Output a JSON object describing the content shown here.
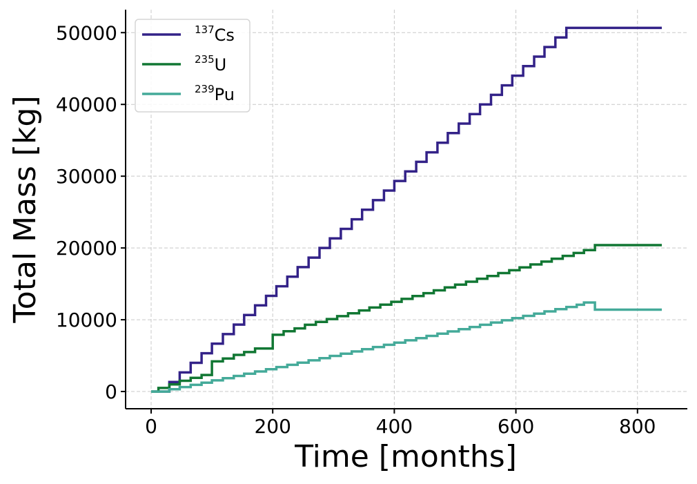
{
  "chart_data": {
    "type": "line",
    "title": "",
    "xlabel": "Time [months]",
    "ylabel": "Total Mass [kg]",
    "xlim": [
      -42,
      882
    ],
    "ylim": [
      -2400,
      53200
    ],
    "xticks": [
      0,
      200,
      400,
      600,
      800
    ],
    "yticks": [
      0,
      10000,
      20000,
      30000,
      40000,
      50000
    ],
    "grid": true,
    "legend_position": "top-left",
    "series": [
      {
        "name": "137Cs",
        "isotope_mass": "137",
        "symbol": "Cs",
        "color": "#332288",
        "step": true,
        "points": [
          [
            0,
            0
          ],
          [
            30,
            1330
          ],
          [
            47,
            2660
          ],
          [
            65,
            4000
          ],
          [
            83,
            5330
          ],
          [
            100,
            6660
          ],
          [
            118,
            8000
          ],
          [
            136,
            9330
          ],
          [
            153,
            10660
          ],
          [
            171,
            12000
          ],
          [
            189,
            13330
          ],
          [
            206,
            14660
          ],
          [
            224,
            16000
          ],
          [
            241,
            17330
          ],
          [
            259,
            18660
          ],
          [
            277,
            20000
          ],
          [
            294,
            21330
          ],
          [
            312,
            22660
          ],
          [
            330,
            24000
          ],
          [
            347,
            25330
          ],
          [
            365,
            26660
          ],
          [
            383,
            28000
          ],
          [
            400,
            29330
          ],
          [
            418,
            30660
          ],
          [
            436,
            32000
          ],
          [
            453,
            33330
          ],
          [
            471,
            34660
          ],
          [
            488,
            36000
          ],
          [
            506,
            37330
          ],
          [
            524,
            38660
          ],
          [
            541,
            40000
          ],
          [
            559,
            41330
          ],
          [
            577,
            42660
          ],
          [
            594,
            44000
          ],
          [
            612,
            45330
          ],
          [
            630,
            46660
          ],
          [
            647,
            48000
          ],
          [
            665,
            49330
          ],
          [
            683,
            50660
          ],
          [
            840,
            50660
          ]
        ]
      },
      {
        "name": "235U",
        "isotope_mass": "235",
        "symbol": "U",
        "color": "#117733",
        "step": true,
        "points": [
          [
            0,
            0
          ],
          [
            12,
            500
          ],
          [
            30,
            1000
          ],
          [
            47,
            1500
          ],
          [
            65,
            1900
          ],
          [
            83,
            2300
          ],
          [
            100,
            4200
          ],
          [
            118,
            4600
          ],
          [
            136,
            5100
          ],
          [
            153,
            5500
          ],
          [
            171,
            6000
          ],
          [
            200,
            7900
          ],
          [
            218,
            8400
          ],
          [
            236,
            8800
          ],
          [
            253,
            9300
          ],
          [
            271,
            9700
          ],
          [
            289,
            10100
          ],
          [
            306,
            10500
          ],
          [
            324,
            10900
          ],
          [
            342,
            11300
          ],
          [
            359,
            11700
          ],
          [
            377,
            12100
          ],
          [
            395,
            12500
          ],
          [
            412,
            12900
          ],
          [
            430,
            13300
          ],
          [
            448,
            13700
          ],
          [
            465,
            14100
          ],
          [
            483,
            14500
          ],
          [
            500,
            14900
          ],
          [
            518,
            15300
          ],
          [
            536,
            15700
          ],
          [
            553,
            16100
          ],
          [
            571,
            16500
          ],
          [
            589,
            16900
          ],
          [
            606,
            17300
          ],
          [
            624,
            17700
          ],
          [
            642,
            18100
          ],
          [
            659,
            18500
          ],
          [
            677,
            18900
          ],
          [
            695,
            19300
          ],
          [
            712,
            19700
          ],
          [
            730,
            20400
          ],
          [
            840,
            20400
          ]
        ]
      },
      {
        "name": "239Pu",
        "isotope_mass": "239",
        "symbol": "Pu",
        "color": "#44AA99",
        "step": true,
        "points": [
          [
            0,
            0
          ],
          [
            30,
            310
          ],
          [
            47,
            620
          ],
          [
            65,
            930
          ],
          [
            83,
            1240
          ],
          [
            100,
            1550
          ],
          [
            118,
            1860
          ],
          [
            136,
            2170
          ],
          [
            153,
            2480
          ],
          [
            171,
            2790
          ],
          [
            189,
            3100
          ],
          [
            206,
            3410
          ],
          [
            224,
            3720
          ],
          [
            241,
            4030
          ],
          [
            259,
            4340
          ],
          [
            277,
            4650
          ],
          [
            294,
            4960
          ],
          [
            312,
            5270
          ],
          [
            330,
            5580
          ],
          [
            347,
            5890
          ],
          [
            365,
            6200
          ],
          [
            383,
            6510
          ],
          [
            400,
            6820
          ],
          [
            418,
            7130
          ],
          [
            436,
            7440
          ],
          [
            453,
            7750
          ],
          [
            471,
            8060
          ],
          [
            488,
            8370
          ],
          [
            506,
            8680
          ],
          [
            524,
            8990
          ],
          [
            541,
            9300
          ],
          [
            559,
            9610
          ],
          [
            577,
            9920
          ],
          [
            594,
            10230
          ],
          [
            612,
            10540
          ],
          [
            630,
            10850
          ],
          [
            647,
            11160
          ],
          [
            665,
            11470
          ],
          [
            683,
            11780
          ],
          [
            700,
            12090
          ],
          [
            712,
            12400
          ],
          [
            730,
            11400
          ],
          [
            840,
            11400
          ]
        ]
      }
    ]
  }
}
